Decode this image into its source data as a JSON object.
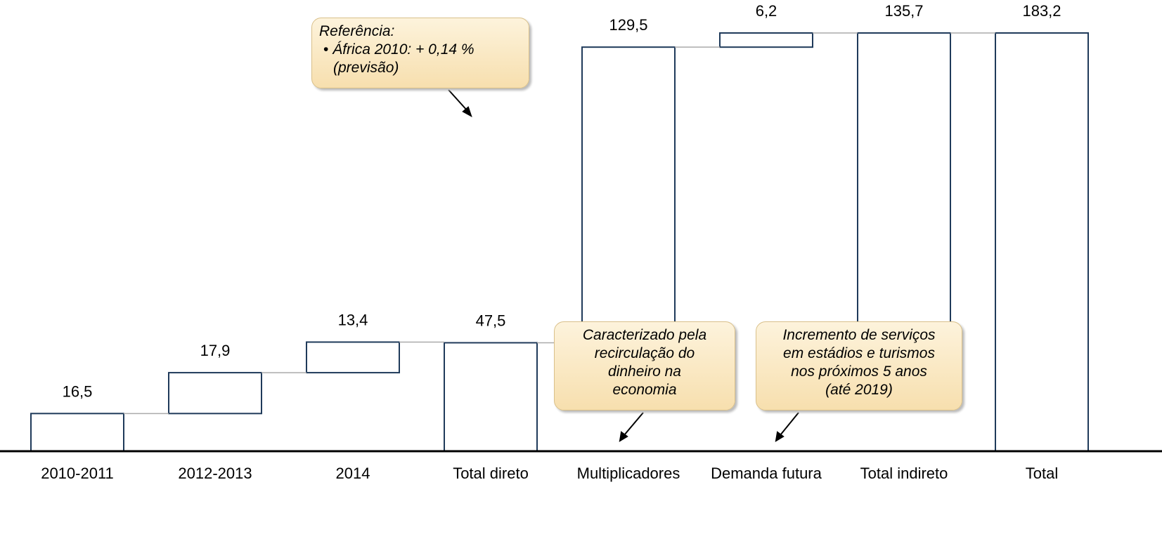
{
  "chart_data": {
    "type": "waterfall",
    "categories": [
      "2010-2011",
      "2012-2013",
      "2014",
      "Total direto",
      "Multiplicadores",
      "Demanda futura",
      "Total indireto",
      "Total"
    ],
    "values": [
      16.5,
      17.9,
      13.4,
      47.5,
      129.5,
      6.2,
      135.7,
      183.2
    ],
    "value_labels": [
      "16,5",
      "17,9",
      "13,4",
      "47,5",
      "129,5",
      "6,2",
      "135,7",
      "183,2"
    ],
    "bar_types": [
      "step",
      "step",
      "step",
      "total",
      "step",
      "step",
      "subtotal",
      "total"
    ],
    "color": "#1f3a5a",
    "annotations": [
      {
        "lines": [
          "Referência:",
          "África 2010: + 0,14 %",
          "(previsão)"
        ]
      },
      {
        "lines": [
          "Caracterizado pela",
          "recirculação do",
          "dinheiro na",
          "economia"
        ]
      },
      {
        "lines": [
          "Incremento de serviços",
          "em estádios e turismos",
          "nos próximos 5 anos",
          "(até 2019)"
        ]
      }
    ]
  }
}
